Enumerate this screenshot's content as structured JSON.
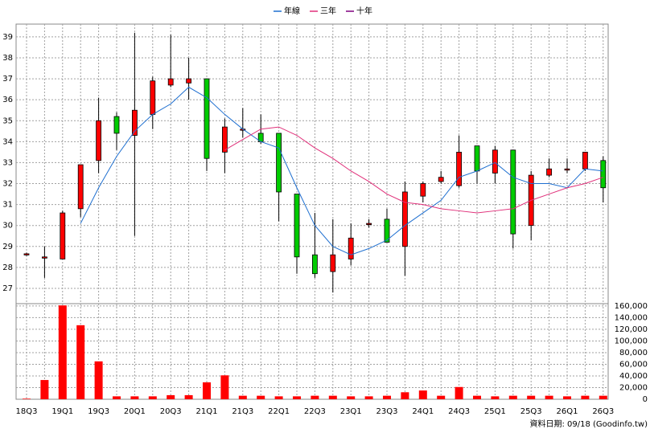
{
  "chart_data": {
    "type": "candlestick",
    "categories": [
      "18Q3",
      null,
      "19Q1",
      null,
      "19Q3",
      null,
      "20Q1",
      null,
      "20Q3",
      null,
      "21Q1",
      null,
      "21Q3",
      null,
      "22Q1",
      null,
      "22Q3",
      null,
      "23Q1",
      null,
      "23Q3",
      null,
      "24Q1",
      null,
      "24Q3",
      null,
      "25Q1",
      null,
      "25Q3",
      null,
      "26Q1",
      null,
      "26Q3"
    ],
    "open": [
      28.6,
      28.45,
      28.4,
      30.8,
      33.1,
      35.2,
      34.3,
      35.3,
      36.7,
      36.8,
      37.0,
      33.5,
      34.6,
      34.4,
      34.4,
      31.5,
      28.6,
      27.8,
      28.4,
      30.1,
      30.3,
      29.0,
      31.4,
      32.1,
      31.9,
      33.8,
      32.5,
      33.6,
      30.0,
      32.4,
      32.7,
      32.7,
      33.1
    ],
    "high": [
      28.7,
      29.0,
      30.7,
      32.9,
      36.1,
      35.4,
      39.2,
      37.1,
      39.1,
      38.0,
      37.0,
      35.1,
      35.6,
      35.3,
      34.4,
      31.5,
      30.6,
      30.3,
      30.1,
      30.3,
      30.8,
      32.1,
      32.1,
      32.6,
      34.3,
      33.8,
      33.8,
      33.6,
      32.6,
      33.2,
      33.2,
      33.5,
      33.3
    ],
    "low": [
      28.55,
      27.5,
      28.4,
      30.4,
      32.5,
      33.6,
      29.5,
      34.6,
      36.6,
      36.0,
      32.6,
      32.5,
      34.2,
      33.9,
      30.2,
      27.7,
      27.5,
      26.8,
      28.1,
      29.9,
      29.2,
      27.6,
      31.1,
      32.0,
      31.8,
      32.0,
      32.0,
      28.9,
      29.3,
      32.3,
      32.5,
      32.6,
      31.1
    ],
    "close": [
      28.65,
      28.5,
      30.6,
      32.9,
      35.0,
      34.4,
      35.5,
      36.9,
      37.0,
      37.0,
      33.2,
      34.7,
      34.6,
      34.0,
      31.6,
      28.5,
      27.7,
      28.6,
      29.4,
      30.1,
      29.2,
      31.6,
      32.0,
      32.3,
      33.5,
      32.6,
      33.6,
      29.6,
      32.4,
      32.7,
      32.7,
      33.5,
      31.8
    ],
    "volume": [
      1000,
      33000,
      161000,
      127000,
      65000,
      5000,
      5000,
      5000,
      7000,
      7000,
      29000,
      41000,
      6000,
      6000,
      5000,
      5000,
      6000,
      6000,
      5000,
      5000,
      6000,
      12000,
      15000,
      6000,
      21000,
      6000,
      5000,
      6000,
      6000,
      6000,
      5000,
      6000,
      6000
    ],
    "up_color": "#ff0000",
    "down_color": "#00cc00",
    "volume_color": "#ff0000",
    "series": [
      {
        "name": "年線",
        "color": "#1e6fd0",
        "values": [
          null,
          null,
          null,
          30.1,
          31.8,
          33.3,
          34.5,
          35.3,
          35.8,
          36.6,
          36.1,
          35.3,
          34.6,
          34.0,
          33.7,
          31.8,
          30.0,
          29.0,
          28.6,
          28.9,
          29.3,
          30.0,
          30.6,
          31.2,
          32.3,
          32.6,
          33.0,
          32.3,
          32.0,
          32.0,
          31.8,
          32.7,
          32.6
        ]
      },
      {
        "name": "三年",
        "color": "#e0307a",
        "values": [
          null,
          null,
          null,
          null,
          null,
          null,
          null,
          null,
          null,
          null,
          null,
          33.6,
          34.1,
          34.6,
          34.7,
          34.3,
          33.7,
          33.2,
          32.6,
          32.1,
          31.5,
          31.1,
          31.0,
          30.8,
          30.7,
          30.6,
          30.7,
          30.8,
          31.2,
          31.5,
          31.8,
          32.0,
          32.3
        ]
      },
      {
        "name": "十年",
        "color": "#800080",
        "values": [
          null,
          null,
          null,
          null,
          null,
          null,
          null,
          null,
          null,
          null,
          null,
          null,
          null,
          null,
          null,
          null,
          null,
          null,
          null,
          null,
          null,
          null,
          null,
          null,
          null,
          null,
          null,
          null,
          null,
          null,
          null,
          null,
          null
        ]
      }
    ],
    "ylim": [
      26.27,
      39.61
    ],
    "yticks": [
      27,
      28,
      29,
      30,
      31,
      32,
      33,
      34,
      35,
      36,
      37,
      38,
      39
    ],
    "y2lim": [
      0,
      164000
    ],
    "y2ticks": [
      0,
      {
        "value": 20000,
        "label": "20,000"
      },
      {
        "value": 40000,
        "label": "40,000"
      },
      {
        "value": 60000,
        "label": "60,000"
      },
      {
        "value": 80000,
        "label": "80,000"
      },
      {
        "value": 100000,
        "label": "100,000"
      },
      {
        "value": 120000,
        "label": "120,000"
      },
      {
        "value": 140000,
        "label": "140,000"
      },
      {
        "value": 160000,
        "label": "160,000"
      }
    ],
    "grid": true,
    "footer": "資料日期: 09/18 (Goodinfo.tw)"
  }
}
